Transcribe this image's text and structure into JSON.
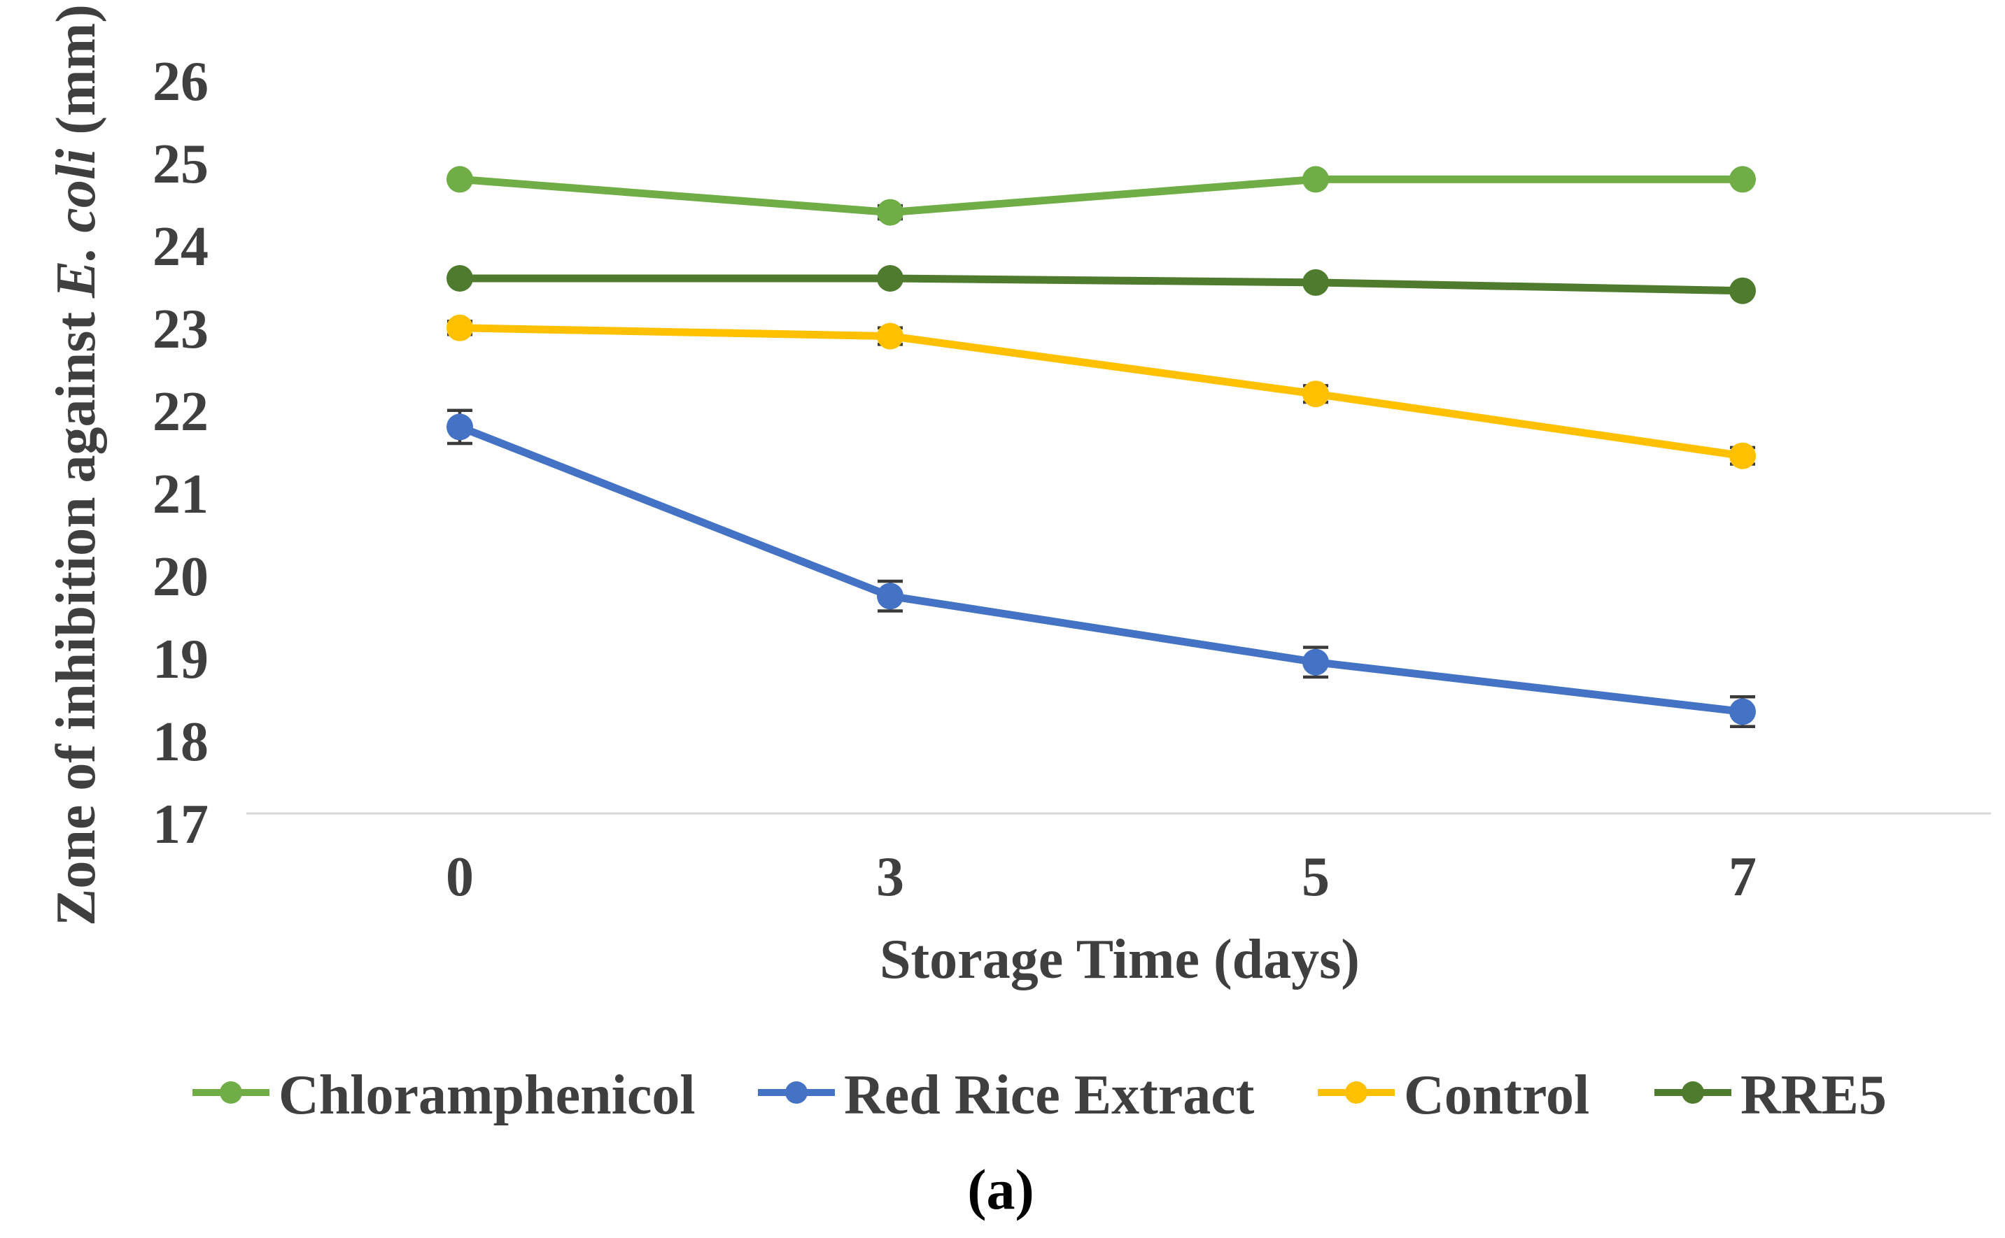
{
  "figure": {
    "caption": "(a)"
  },
  "chart_data": {
    "type": "line",
    "title": "",
    "xlabel": "Storage Time (days)",
    "ylabel": "Zone of inhibition against E. coli (mm)",
    "ylabel_parts": {
      "prefix": "Zone of inhibition against ",
      "italic": "E. coli",
      "suffix": " (mm)"
    },
    "categories": [
      "0",
      "3",
      "5",
      "7"
    ],
    "y_ticks": [
      26,
      25,
      24,
      23,
      22,
      21,
      20,
      19,
      18,
      17
    ],
    "ylim": [
      17,
      26
    ],
    "grid": false,
    "legend_position": "bottom",
    "axis_line_color": "#d9d9d9",
    "text_color": "#3f3f3f",
    "error_bar_color": "#3a3a3a",
    "series": [
      {
        "name": "Chloramphenicol",
        "color": "#70AD47",
        "values": [
          24.7,
          24.3,
          24.7,
          24.7
        ],
        "errors": [
          0,
          0.08,
          0,
          0
        ]
      },
      {
        "name": "Red Rice Extract",
        "color": "#4472C4",
        "values": [
          21.7,
          19.65,
          18.85,
          18.25
        ],
        "errors": [
          0.2,
          0.18,
          0.18,
          0.18
        ]
      },
      {
        "name": "Control",
        "color": "#FFC000",
        "values": [
          22.9,
          22.8,
          22.1,
          21.35
        ],
        "errors": [
          0.08,
          0.1,
          0.1,
          0.1
        ]
      },
      {
        "name": "RRE5",
        "color": "#4E7B2D",
        "values": [
          23.5,
          23.5,
          23.45,
          23.35
        ],
        "errors": [
          0,
          0,
          0,
          0
        ]
      }
    ]
  }
}
